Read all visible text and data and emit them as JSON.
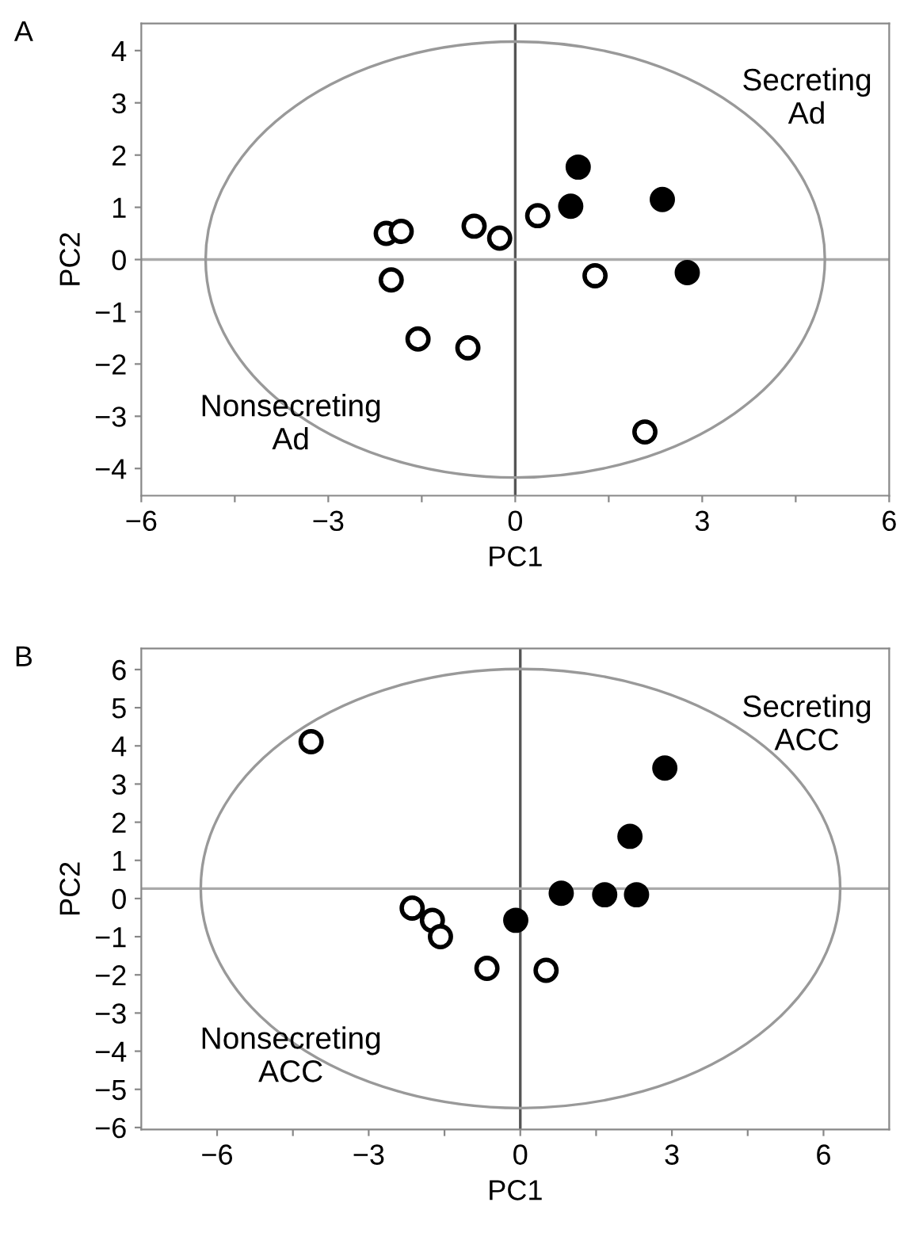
{
  "chart_data": [
    {
      "type": "scatter",
      "title": "A",
      "xlabel": "PC1",
      "ylabel": "PC2",
      "xlim": [
        -6,
        6
      ],
      "ylim": [
        -4.52,
        4.52
      ],
      "xticks": [
        {
          "value": -6,
          "label": "−6"
        },
        {
          "value": -4.5,
          "label": null
        },
        {
          "value": -3,
          "label": "−3"
        },
        {
          "value": -1.5,
          "label": null
        },
        0,
        {
          "value": 1.5,
          "label": null
        },
        3,
        {
          "value": 4.5,
          "label": null
        },
        6
      ],
      "yticks": [
        {
          "value": -4,
          "label": "−4"
        },
        {
          "value": -3,
          "label": "−3"
        },
        {
          "value": -2,
          "label": "−2"
        },
        {
          "value": -1,
          "label": "−1"
        },
        0,
        1,
        2,
        3,
        4
      ],
      "marker": "circle",
      "grid": false,
      "legend": false,
      "ref_lines": [
        {
          "axis": "x",
          "value": 0,
          "color": "#555555"
        },
        {
          "axis": "y",
          "value": 0,
          "color": "#aaaaaa"
        }
      ],
      "annotations": [
        "Secreting\nAd",
        "Nonsecreting\nAd"
      ],
      "series": [
        {
          "type": "scatter",
          "color": "#ffffff",
          "x": [
            -2.07,
            -1.83,
            -1.99,
            -0.66,
            -0.25,
            0.36,
            -1.56,
            -0.76,
            1.28,
            2.08
          ],
          "values": [
            0.5,
            0.54,
            -0.39,
            0.64,
            0.41,
            0.84,
            -1.52,
            -1.69,
            -0.31,
            -3.3
          ]
        },
        {
          "type": "scatter",
          "color": "#000000",
          "x": [
            1.01,
            0.89,
            2.36,
            2.76
          ],
          "values": [
            1.77,
            1.02,
            1.15,
            -0.25
          ]
        }
      ]
    },
    {
      "type": "scatter",
      "title": "B",
      "xlabel": "PC1",
      "ylabel": "PC2",
      "xlim": [
        -7.5,
        7.3
      ],
      "ylim": [
        -6.05,
        6.55
      ],
      "xticks": [
        {
          "value": -6,
          "label": "−6"
        },
        {
          "value": -4.5,
          "label": null
        },
        {
          "value": -3,
          "label": "−3"
        },
        {
          "value": -1.5,
          "label": null
        },
        0,
        {
          "value": 1.5,
          "label": null
        },
        3,
        {
          "value": 4.5,
          "label": null
        },
        6
      ],
      "yticks": [
        {
          "value": -6,
          "label": "−6"
        },
        {
          "value": -5,
          "label": "−5"
        },
        {
          "value": -4,
          "label": "−4"
        },
        {
          "value": -3,
          "label": "−3"
        },
        {
          "value": -2,
          "label": "−2"
        },
        {
          "value": -1,
          "label": "−1"
        },
        0,
        1,
        2,
        3,
        4,
        5,
        6
      ],
      "marker": "circle",
      "grid": false,
      "legend": false,
      "ref_lines": [
        {
          "axis": "x",
          "value": 0,
          "color": "#555555"
        },
        {
          "axis": "y",
          "value": 0.26,
          "color": "#aaaaaa"
        }
      ],
      "annotations": [
        "Secreting\nACC",
        "Nonsecreting\nACC"
      ],
      "series": [
        {
          "type": "scatter",
          "color": "#ffffff",
          "x": [
            -4.14,
            -2.14,
            -1.74,
            -1.58,
            -0.66,
            0.51
          ],
          "values": [
            4.11,
            -0.25,
            -0.57,
            -1.0,
            -1.83,
            -1.88
          ]
        },
        {
          "type": "scatter",
          "color": "#000000",
          "x": [
            -0.09,
            0.81,
            1.67,
            2.3,
            2.17,
            2.86
          ],
          "values": [
            -0.57,
            0.14,
            0.1,
            0.1,
            1.63,
            3.42
          ]
        }
      ]
    }
  ]
}
